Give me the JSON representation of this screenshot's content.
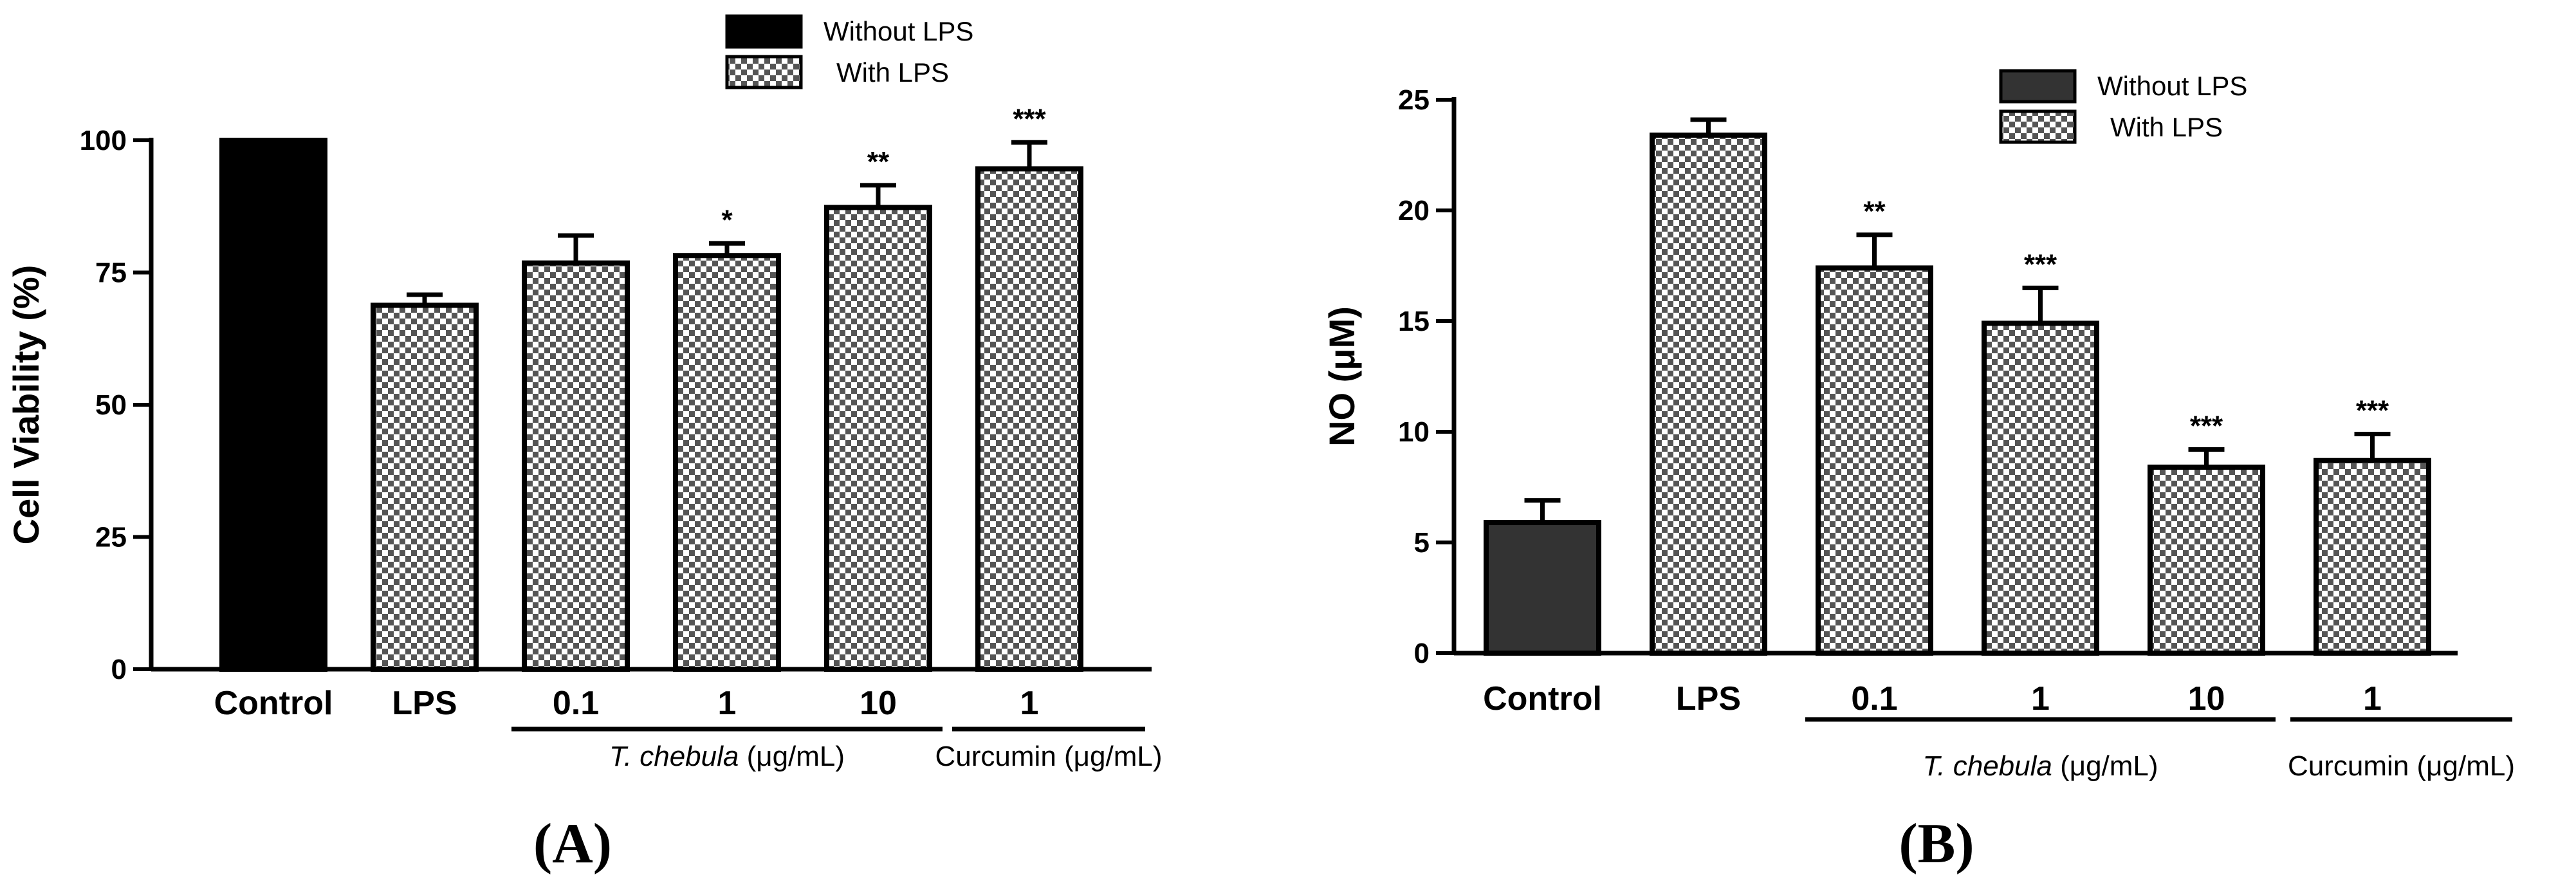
{
  "chart_data": [
    {
      "type": "bar",
      "panel_label": "(A)",
      "ylabel": "Cell Viability (%)",
      "ylim": [
        0,
        100
      ],
      "yticks": [
        "0",
        "25",
        "50",
        "75",
        "100"
      ],
      "categories": [
        "Control",
        "LPS",
        "0.1",
        "1",
        "10",
        "1"
      ],
      "values": [
        100,
        68.8,
        76.8,
        78.2,
        87.3,
        94.6
      ],
      "errors": [
        0,
        2.0,
        5.2,
        2.3,
        4.2,
        5.0
      ],
      "lps": [
        false,
        true,
        true,
        true,
        true,
        true
      ],
      "significance": [
        "",
        "",
        "",
        "*",
        "**",
        "***"
      ],
      "groups": [
        {
          "label": "T. chebula (μg/mL)",
          "from": 2,
          "to": 4
        },
        {
          "label": "Curcumin (μg/mL)",
          "from": 5,
          "to": 5
        }
      ],
      "legend": {
        "without": "Without LPS",
        "with": "With LPS",
        "position": "top-right"
      },
      "colors": {
        "without_lps": "#000000"
      }
    },
    {
      "type": "bar",
      "panel_label": "(B)",
      "ylabel": "NO (μM)",
      "ylim": [
        0,
        25
      ],
      "yticks": [
        "0",
        "5",
        "10",
        "15",
        "20",
        "25"
      ],
      "categories": [
        "Control",
        "LPS",
        "0.1",
        "1",
        "10",
        "1"
      ],
      "values": [
        5.9,
        23.4,
        17.4,
        14.9,
        8.4,
        8.7
      ],
      "errors": [
        1.0,
        0.7,
        1.5,
        1.6,
        0.8,
        1.2
      ],
      "lps": [
        false,
        true,
        true,
        true,
        true,
        true
      ],
      "significance": [
        "",
        "",
        "**",
        "***",
        "***",
        "***"
      ],
      "groups": [
        {
          "label": "T. chebula (μg/mL)",
          "from": 2,
          "to": 4
        },
        {
          "label": "Curcumin (μg/mL)",
          "from": 5,
          "to": 5
        }
      ],
      "legend": {
        "without": "Without LPS",
        "with": "With LPS",
        "position": "top-right"
      },
      "colors": {
        "without_lps": "#333333"
      }
    }
  ]
}
